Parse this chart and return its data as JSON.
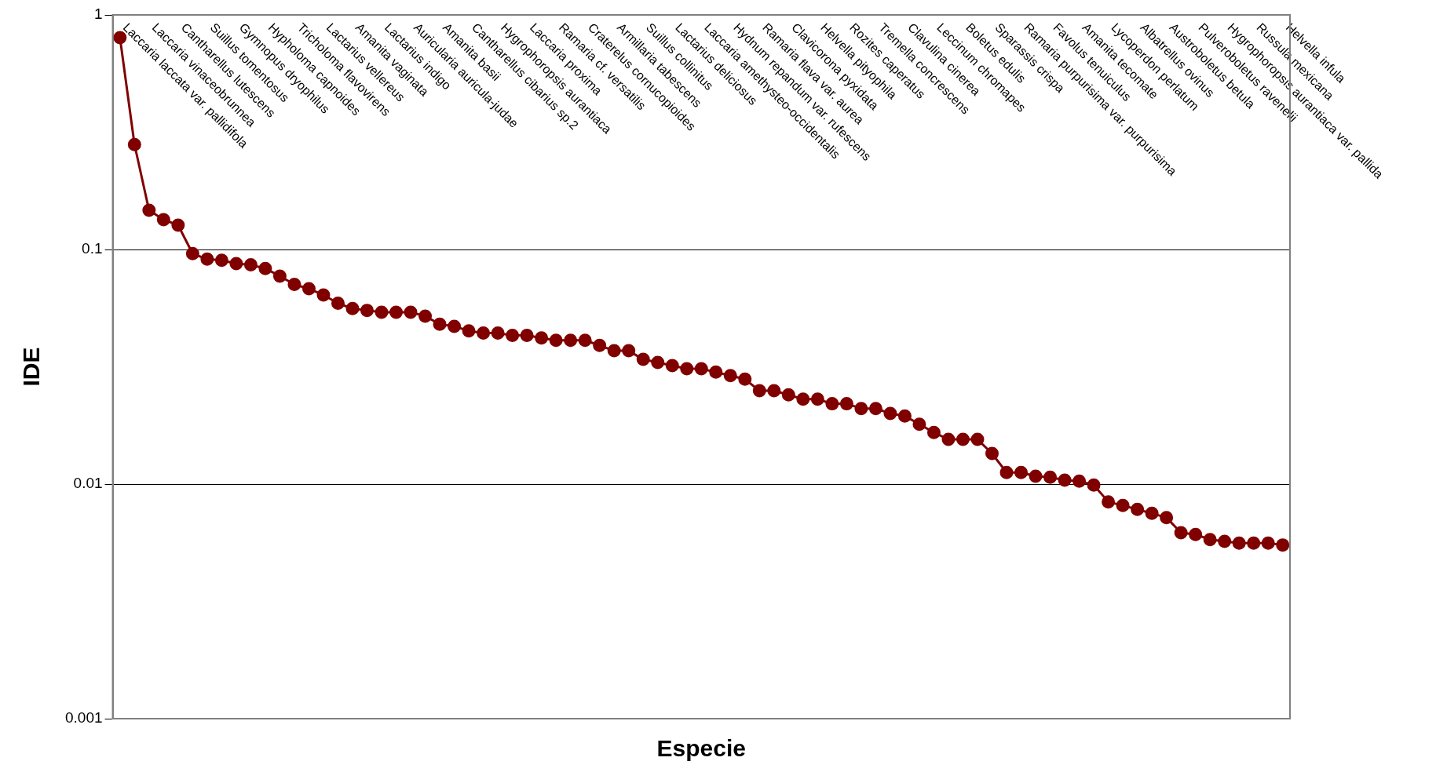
{
  "chart_data": {
    "type": "line",
    "xlabel": "Especie",
    "ylabel": "IDE",
    "categories": [
      "Laccaria laccata var. pallidifola",
      null,
      "Laccaria vinaceobrunnea",
      null,
      "Cantharellus lutescens",
      null,
      "Suillus tomentosus",
      null,
      "Gymnopus dryophilus",
      null,
      "Hypholoma capnoides",
      null,
      "Tricholoma flavovirens",
      null,
      "Lactarius vellereus",
      null,
      "Amanita vaginata",
      null,
      "Lactarius indigo",
      null,
      "Auricularia auricula-judae",
      null,
      "Amanita basii",
      null,
      "Cantharellus cibarius sp.2",
      null,
      "Hygrophoropsis aurantiaca",
      null,
      "Laccaria proxima",
      null,
      "Ramaria cf. versatilis",
      null,
      "Craterelus cornucopioides",
      null,
      "Armillaria tabescens",
      null,
      "Suillus collinitus",
      null,
      "Lactarius deliciosus",
      null,
      "Laccaria amethysteo-occidentalis",
      null,
      "Hydnum repandum var. rufescens",
      null,
      "Ramaria flava var. aurea",
      null,
      "Clavicorona pyxidata",
      null,
      "Helvella pityophila",
      null,
      "Rozites caperatus",
      null,
      "Tremella concrescens",
      null,
      "Clavulina cinerea",
      null,
      "Leccinum chromapes",
      null,
      "Boletus edulis",
      null,
      "Sparassis crispa",
      null,
      "Ramaria purpurisima var. purpurisima",
      null,
      "Favolus tenuiculus",
      null,
      "Amanita tecomate",
      null,
      "Lycoperdon perlatum",
      null,
      "Albatrellus ovinus",
      null,
      "Austroboletus betula",
      null,
      "Pulveroboletus ravenelii",
      null,
      "Hygrophoropsis aurantiaca var. pallida",
      null,
      "Russula mexicana",
      null,
      "Helvella infula"
    ],
    "series": [
      {
        "color": "#800000",
        "values": [
          0.8,
          0.28,
          0.147,
          0.134,
          0.127,
          0.096,
          0.091,
          0.09,
          0.087,
          0.086,
          0.083,
          0.077,
          0.071,
          0.068,
          0.064,
          0.059,
          0.056,
          0.055,
          0.054,
          0.054,
          0.054,
          0.052,
          0.048,
          0.047,
          0.045,
          0.044,
          0.044,
          0.043,
          0.043,
          0.042,
          0.041,
          0.041,
          0.041,
          0.039,
          0.037,
          0.037,
          0.034,
          0.033,
          0.032,
          0.031,
          0.031,
          0.03,
          0.029,
          0.028,
          0.025,
          0.025,
          0.024,
          0.023,
          0.023,
          0.022,
          0.022,
          0.021,
          0.021,
          0.02,
          0.0195,
          0.018,
          0.0166,
          0.0155,
          0.0155,
          0.0155,
          0.0135,
          0.0112,
          0.0112,
          0.0108,
          0.0107,
          0.0104,
          0.0103,
          0.0099,
          0.0084,
          0.0081,
          0.0078,
          0.0075,
          0.0072,
          0.0062,
          0.0061,
          0.0058,
          0.0057,
          0.0056,
          0.0056,
          0.0056,
          0.0055
        ]
      }
    ],
    "log": true,
    "ylim": [
      0.001,
      1
    ],
    "yticks": [
      0.001,
      0.01,
      0.1,
      1
    ],
    "grid": "y",
    "legend": false,
    "marker": "circle",
    "line_style": "solid"
  }
}
